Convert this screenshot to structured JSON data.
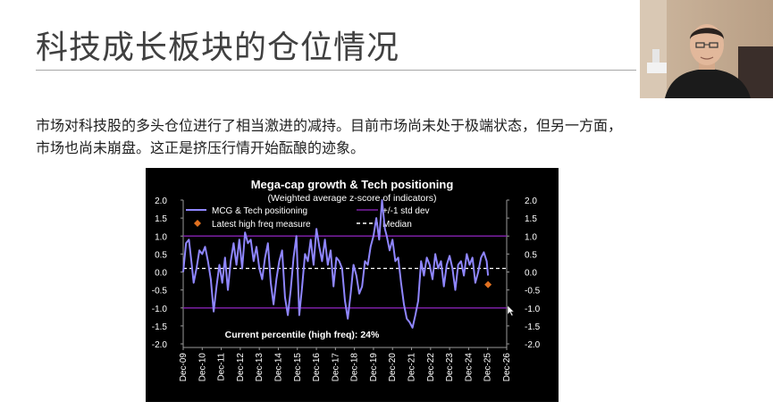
{
  "slide": {
    "title": "科技成长板块的仓位情况",
    "paragraph": [
      "市场对科技股的多头仓位进行了相当激进的减持。目前市场尚未处于极端状态，但另一方面，",
      "市场也尚未崩盘。这正是挤压行情开始酝酿的迹象。"
    ]
  },
  "colors": {
    "title": "#404040",
    "body_text": "#1f1f1f",
    "chart_bg": "#000000",
    "series": "#8f86ff",
    "std_dev": "#7a1fa3",
    "median": "#ffffff",
    "latest_marker": "#e07020"
  },
  "chart_data": {
    "type": "line",
    "title": "Mega-cap growth & Tech positioning",
    "subtitle": "(Weighted average z-score of indicators)",
    "legend": {
      "series_label": "MCG & Tech positioning",
      "std_label": "+/-1 std dev",
      "latest_label": "Latest high freq measure",
      "median_label": "Median",
      "placement": "top"
    },
    "annotation": "Current percentile (high freq): 24%",
    "ylim": [
      -2.0,
      2.0
    ],
    "left_ticks": [
      "2.0",
      "1.5",
      "1.0",
      "0.5",
      "0.0",
      "-0.5",
      "-1.0",
      "-1.5",
      "-2.0"
    ],
    "right_ticks": [
      "2.0",
      "1.5",
      "1.0",
      "0.5",
      "0.0",
      "-0.5",
      "-1.0",
      "-1.5",
      "-2.0"
    ],
    "x_ticks": [
      "Dec-09",
      "Dec-10",
      "Dec-11",
      "Dec-12",
      "Dec-13",
      "Dec-14",
      "Dec-15",
      "Dec-16",
      "Dec-17",
      "Dec-18",
      "Dec-19",
      "Dec-20",
      "Dec-21",
      "Dec-22",
      "Dec-23",
      "Dec-24",
      "Dec-25",
      "Dec-26"
    ],
    "std_dev_levels": [
      1.0,
      -1.0
    ],
    "median": 0.1,
    "latest": {
      "x": 2025.97,
      "y": -0.35
    },
    "grid": false,
    "series": [
      {
        "name": "MCG & Tech positioning",
        "x": [
          2009.95,
          2010.1,
          2010.25,
          2010.4,
          2010.5,
          2010.65,
          2010.8,
          2010.95,
          2011.1,
          2011.25,
          2011.4,
          2011.55,
          2011.7,
          2011.85,
          2012.0,
          2012.15,
          2012.3,
          2012.45,
          2012.6,
          2012.75,
          2012.9,
          2013.05,
          2013.2,
          2013.35,
          2013.5,
          2013.65,
          2013.8,
          2013.95,
          2014.1,
          2014.25,
          2014.4,
          2014.55,
          2014.7,
          2014.85,
          2015.0,
          2015.15,
          2015.3,
          2015.45,
          2015.6,
          2015.75,
          2015.9,
          2016.05,
          2016.2,
          2016.35,
          2016.5,
          2016.65,
          2016.8,
          2016.95,
          2017.1,
          2017.25,
          2017.4,
          2017.55,
          2017.7,
          2017.85,
          2018.0,
          2018.15,
          2018.3,
          2018.45,
          2018.6,
          2018.75,
          2018.9,
          2019.05,
          2019.2,
          2019.35,
          2019.5,
          2019.65,
          2019.8,
          2019.95,
          2020.1,
          2020.25,
          2020.4,
          2020.55,
          2020.65,
          2020.8,
          2020.95,
          2021.1,
          2021.25,
          2021.4,
          2021.55,
          2021.7,
          2021.85,
          2022.0,
          2022.15,
          2022.3,
          2022.45,
          2022.6,
          2022.75,
          2022.9,
          2023.05,
          2023.2,
          2023.35,
          2023.5,
          2023.65,
          2023.8,
          2023.95,
          2024.1,
          2024.25,
          2024.4,
          2024.55,
          2024.7,
          2024.85,
          2025.0,
          2025.15,
          2025.3,
          2025.45,
          2025.6,
          2025.75,
          2025.9,
          2025.97
        ],
        "y": [
          0.0,
          0.8,
          0.9,
          0.2,
          -0.3,
          0.1,
          0.6,
          0.5,
          0.7,
          0.3,
          -0.2,
          -1.1,
          -0.4,
          0.2,
          -0.3,
          0.4,
          -0.5,
          0.3,
          0.8,
          0.2,
          0.9,
          0.1,
          1.1,
          0.8,
          0.9,
          0.3,
          0.7,
          0.1,
          -0.2,
          0.4,
          0.8,
          -0.3,
          -0.9,
          -0.2,
          0.3,
          0.6,
          -0.7,
          -1.2,
          -0.5,
          0.4,
          1.0,
          -1.2,
          -0.4,
          0.5,
          0.3,
          0.9,
          0.2,
          1.2,
          0.7,
          0.3,
          0.9,
          0.2,
          0.6,
          -0.4,
          0.4,
          0.3,
          0.1,
          -0.8,
          -1.3,
          -0.6,
          0.2,
          -0.1,
          -0.6,
          -0.4,
          0.3,
          0.2,
          0.7,
          1.0,
          1.5,
          0.9,
          2.0,
          1.2,
          1.0,
          0.6,
          0.9,
          0.3,
          0.4,
          -0.3,
          -0.9,
          -1.3,
          -1.4,
          -1.55,
          -1.2,
          -0.8,
          0.3,
          -0.1,
          0.4,
          0.2,
          -0.2,
          0.5,
          0.1,
          0.3,
          -0.4,
          0.2,
          0.45,
          0.1,
          -0.5,
          0.2,
          0.3,
          -0.1,
          0.5,
          0.2,
          0.4,
          -0.3,
          0.0,
          0.4,
          0.55,
          0.3,
          -0.1
        ]
      }
    ]
  }
}
